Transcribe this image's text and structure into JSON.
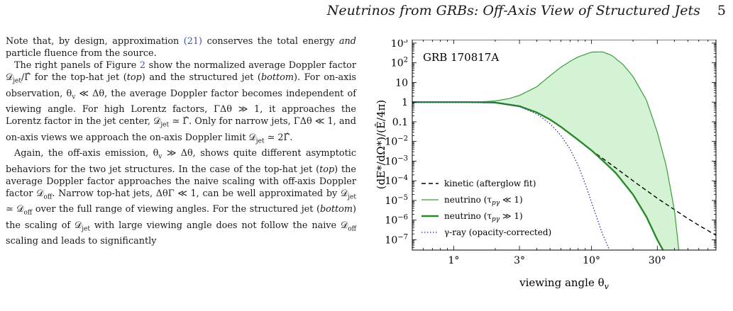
{
  "header": {
    "running_title": "Neutrinos from GRBs: Off-Axis View of Structured Jets",
    "page_number": "5"
  },
  "paragraphs": [
    {
      "segments": [
        {
          "t": "Note that, by design, approximation "
        },
        {
          "t": "(21)",
          "ref": true
        },
        {
          "t": " conserves the total energy "
        },
        {
          "t": "and",
          "i": true
        },
        {
          "t": " particle fluence from the source."
        }
      ]
    },
    {
      "segments": [
        {
          "t": "The right panels of Figure "
        },
        {
          "t": "2",
          "ref": true
        },
        {
          "t": " show the normalized average Doppler factor 𝒟"
        },
        {
          "t": "jet",
          "sub": true
        },
        {
          "t": "/Γ̂ for the top-hat jet ("
        },
        {
          "t": "top",
          "i": true
        },
        {
          "t": ") and the structured jet ("
        },
        {
          "t": "bottom",
          "i": true
        },
        {
          "t": "). For on-axis observation, θ"
        },
        {
          "t": "v",
          "sub": true
        },
        {
          "t": " ≪ Δθ, the average Doppler factor becomes independent of viewing angle. For high Lorentz factors, ΓΔθ ≫ 1, it approaches the Lorentz factor in the jet center, 𝒟"
        },
        {
          "t": "jet",
          "sub": true
        },
        {
          "t": " ≃ Γ̂. Only for narrow jets, ΓΔθ ≪ 1, and on-axis views we approach the on-axis Doppler limit 𝒟"
        },
        {
          "t": "jet",
          "sub": true
        },
        {
          "t": " ≃ 2Γ̂."
        }
      ]
    },
    {
      "segments": [
        {
          "t": "Again, the off-axis emission, θ"
        },
        {
          "t": "v",
          "sub": true
        },
        {
          "t": " ≫ Δθ, shows quite different asymptotic behaviors for the two jet structures. In the case of the top-hat jet ("
        },
        {
          "t": "top",
          "i": true
        },
        {
          "t": ") the average Doppler factor approaches the naive scaling with off-axis Doppler factor 𝒟"
        },
        {
          "t": "off",
          "sub": true
        },
        {
          "t": ". Narrow top-hat jets, ΔθΓ ≪ 1, can be well approximated by 𝒟"
        },
        {
          "t": "jet",
          "sub": true
        },
        {
          "t": " ≃ 𝒟"
        },
        {
          "t": "off",
          "sub": true
        },
        {
          "t": " over the full range of viewing angles. For the structured jet ("
        },
        {
          "t": "bottom",
          "i": true
        },
        {
          "t": ") the scaling of 𝒟"
        },
        {
          "t": "jet",
          "sub": true
        },
        {
          "t": " with large viewing angle does not follow the naive 𝒟"
        },
        {
          "t": "off",
          "sub": true
        },
        {
          "t": " scaling and leads to significantly"
        }
      ]
    }
  ],
  "chart_data": {
    "type": "line",
    "title": "GRB 170817A",
    "xlabel": "viewing angle θv",
    "ylabel": "(dE*/dΩ*)/(Ê/4π)",
    "x_scale": "log",
    "y_scale": "log",
    "xlim": [
      0.5,
      80
    ],
    "ylim": [
      3e-08,
      1500
    ],
    "x_ticks": [
      1,
      3,
      10,
      30
    ],
    "x_tick_labels": [
      "1°",
      "3°",
      "10°",
      "30°"
    ],
    "y_ticks": [
      1000,
      100,
      10,
      1,
      0.1,
      0.01,
      0.001,
      0.0001,
      1e-05,
      1e-06,
      1e-07
    ],
    "y_tick_labels": [
      "10^3",
      "10^2",
      "10",
      "1",
      "0.1",
      "10^-2",
      "10^-3",
      "10^-4",
      "10^-5",
      "10^-6",
      "10^-7"
    ],
    "legend_position": "bottom-left",
    "fill_between": {
      "lower": "neutrino (τpγ ≫ 1)",
      "upper": "neutrino (τpγ ≪ 1)",
      "color": "#d4f2d4"
    },
    "series": [
      {
        "name": "kinetic (afterglow fit)",
        "label_main": "kinetic (afterglow fit)",
        "label_sub": "",
        "label_tail": "",
        "style": "dashed",
        "color": "#000000",
        "width": 1.4,
        "x": [
          0.5,
          1,
          1.5,
          2,
          3,
          4,
          5,
          6,
          8,
          10,
          15,
          20,
          30,
          40,
          50,
          60,
          80
        ],
        "y": [
          1,
          1,
          0.99,
          0.95,
          0.62,
          0.3,
          0.13,
          0.055,
          0.012,
          0.0035,
          0.00045,
          0.0001,
          1.3e-05,
          3.4e-06,
          1.2e-06,
          5.5e-07,
          1.7e-07
        ]
      },
      {
        "name": "neutrino (τpγ ≪ 1)",
        "label_main": "neutrino (τ",
        "label_sub": "pγ",
        "label_tail": " ≪ 1)",
        "style": "solid",
        "color": "#3a9e3a",
        "width": 1.2,
        "x": [
          0.5,
          1,
          1.5,
          2,
          2.5,
          3,
          4,
          5,
          6,
          7,
          8,
          10,
          12,
          14,
          17,
          20,
          25,
          30,
          35,
          40,
          43
        ],
        "y": [
          1,
          1,
          1.02,
          1.15,
          1.5,
          2.2,
          6,
          22,
          60,
          120,
          200,
          350,
          360,
          240,
          80,
          20,
          1.3,
          0.03,
          0.0005,
          3e-06,
          3e-08
        ]
      },
      {
        "name": "neutrino (τpγ ≫ 1)",
        "label_main": "neutrino (τ",
        "label_sub": "pγ",
        "label_tail": " ≫ 1)",
        "style": "solid",
        "color": "#2a8a2a",
        "width": 2.4,
        "x": [
          0.5,
          1,
          1.5,
          2,
          3,
          4,
          5,
          6,
          8,
          10,
          12,
          15,
          20,
          25,
          30,
          33
        ],
        "y": [
          1,
          1,
          0.99,
          0.95,
          0.62,
          0.3,
          0.13,
          0.055,
          0.012,
          0.0035,
          0.0011,
          0.00025,
          2e-05,
          1.5e-06,
          1e-07,
          3e-08
        ]
      },
      {
        "name": "γ-ray (opacity-corrected)",
        "label_main": "γ-ray (opacity-corrected)",
        "label_sub": "",
        "label_tail": "",
        "style": "dotted",
        "color": "#2233aa",
        "width": 1.3,
        "x": [
          0.5,
          1,
          1.5,
          2,
          3,
          4,
          5,
          6,
          7,
          8,
          9,
          10,
          12,
          13.5
        ],
        "y": [
          1,
          1,
          0.99,
          0.95,
          0.6,
          0.25,
          0.08,
          0.02,
          0.004,
          0.0006,
          7e-05,
          8e-06,
          2e-07,
          3e-08
        ]
      }
    ]
  }
}
